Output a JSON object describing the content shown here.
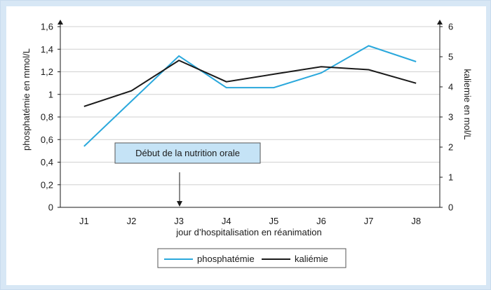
{
  "chart_data": {
    "type": "line",
    "categories": [
      "J1",
      "J2",
      "J3",
      "J4",
      "J5",
      "J6",
      "J7",
      "J8"
    ],
    "xlabel": "jour d’hospitalisation en réanimation",
    "ylabel": "phosphatémie en mmol/L",
    "y2label": "kaliemie en mol/L",
    "ylim": [
      0,
      1.6
    ],
    "y2lim": [
      0,
      6
    ],
    "yticks": [
      "0",
      "0,2",
      "0,4",
      "0,6",
      "0,8",
      "1",
      "1,2",
      "1,4",
      "1,6"
    ],
    "y2ticks": [
      "0",
      "1",
      "2",
      "3",
      "4",
      "5",
      "6"
    ],
    "grid": true,
    "legend_position": "bottom",
    "series": [
      {
        "name": "phosphatémie",
        "axis": "left",
        "color": "#2aa8dc",
        "values": [
          0.54,
          0.94,
          1.34,
          1.06,
          1.06,
          1.19,
          1.43,
          1.29
        ]
      },
      {
        "name": "kaliémie",
        "axis": "right",
        "color": "#1a1a1a",
        "values": [
          3.35,
          3.87,
          4.88,
          4.17,
          4.42,
          4.67,
          4.57,
          4.12
        ]
      }
    ],
    "annotations": [
      {
        "text": "Début de la nutrition orale",
        "category": "J3"
      }
    ]
  }
}
